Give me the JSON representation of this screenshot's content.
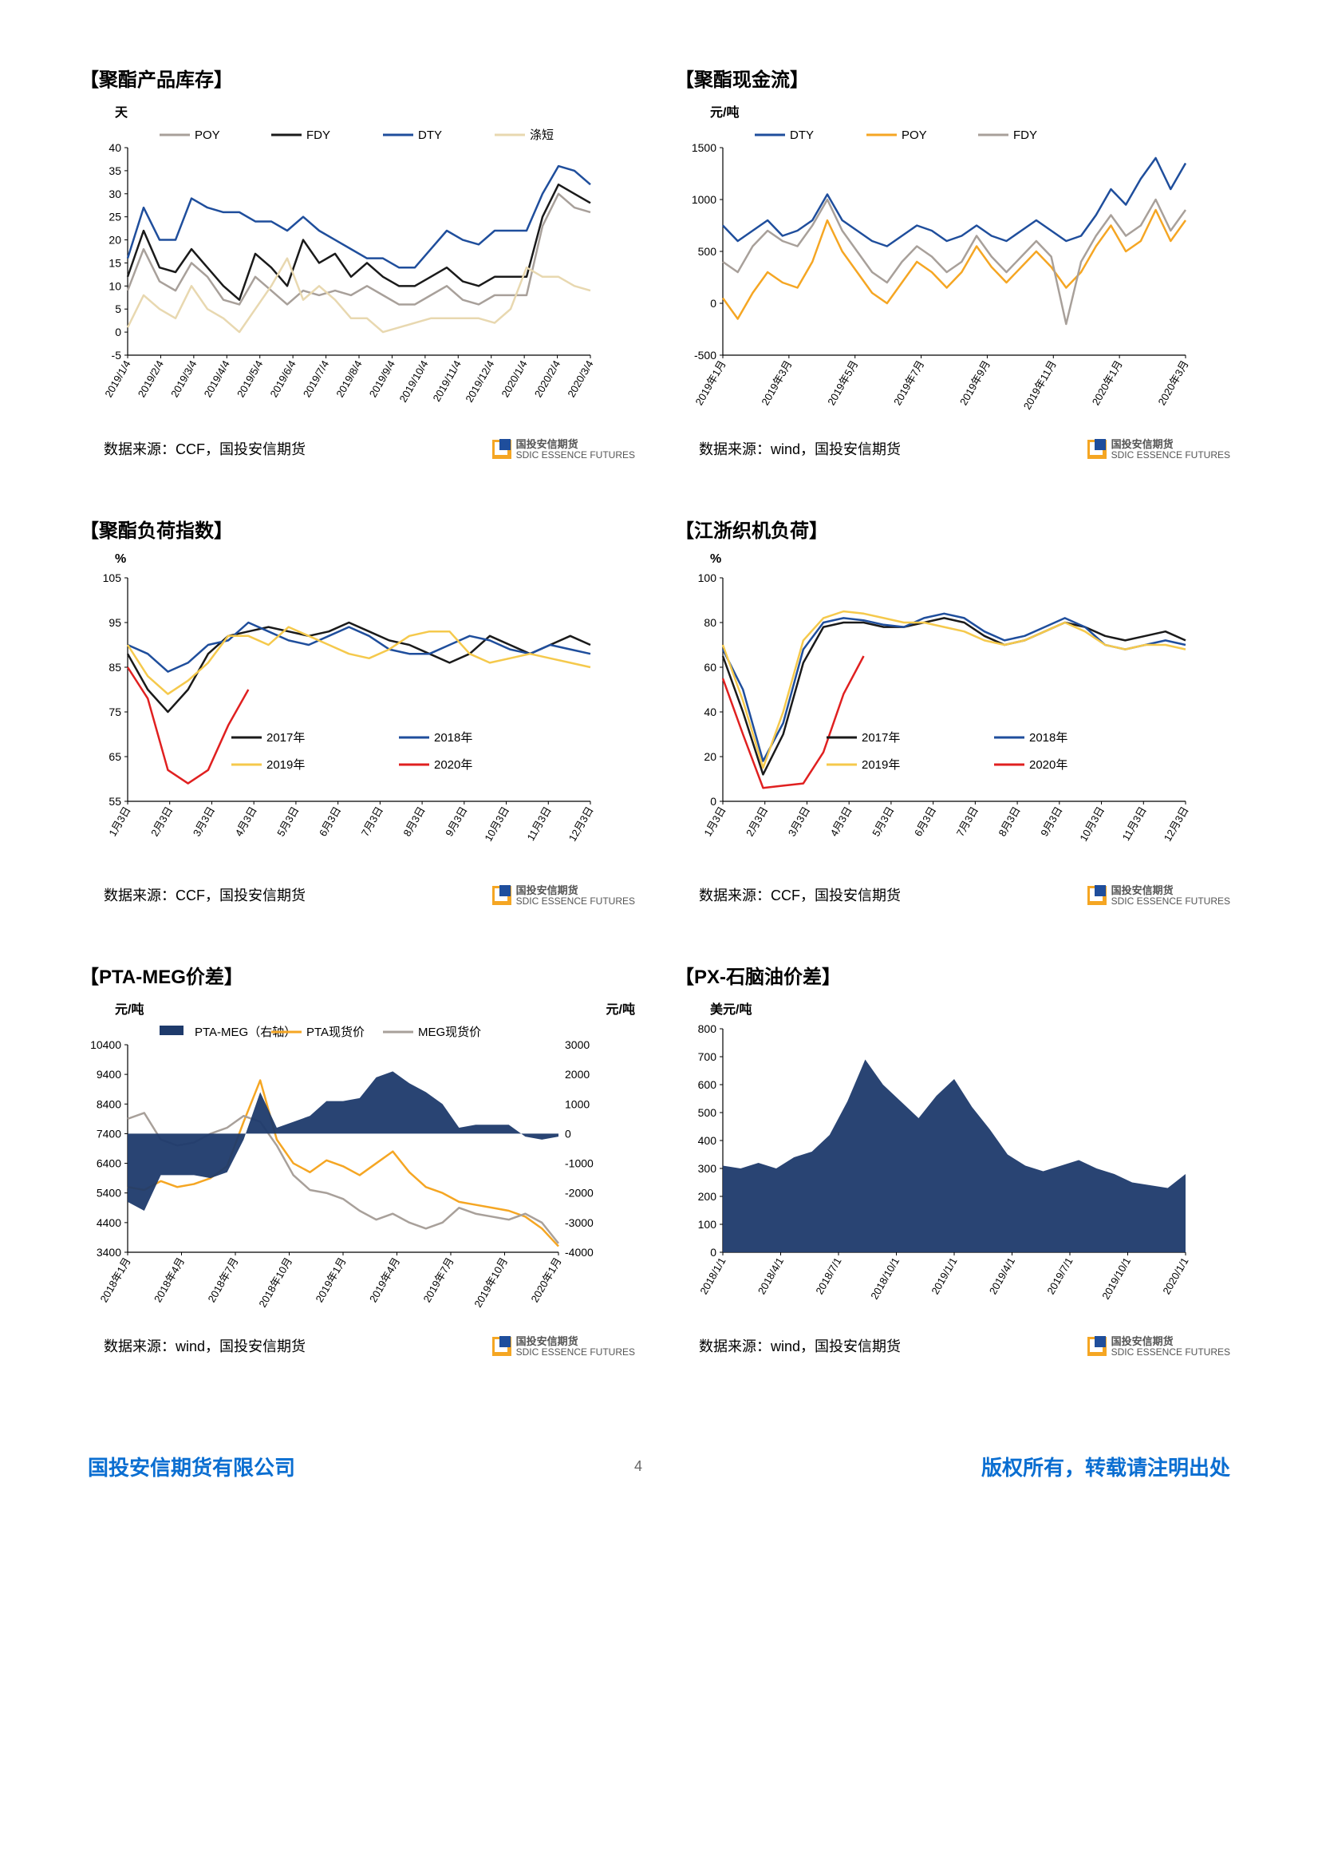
{
  "footer": {
    "left": "国投安信期货有限公司",
    "page": "4",
    "right": "版权所有，转载请注明出处"
  },
  "logo": {
    "cn": "国投安信期货",
    "en": "SDIC ESSENCE FUTURES"
  },
  "colors": {
    "grey": "#a8a09a",
    "black": "#1a1a1a",
    "blue": "#1f4e9c",
    "tan": "#e8d8b0",
    "orange": "#f5a623",
    "red": "#e02020",
    "yellow": "#f5c94c",
    "navy": "#1e3a6b"
  },
  "c1": {
    "title": "【聚酯产品库存】",
    "ylabel": "天",
    "source": "数据来源：CCF，国投安信期货",
    "ymin": -5,
    "ymax": 40,
    "ystep": 5,
    "xticks": [
      "2019/1/4",
      "2019/2/4",
      "2019/3/4",
      "2019/4/4",
      "2019/5/4",
      "2019/6/4",
      "2019/7/4",
      "2019/8/4",
      "2019/9/4",
      "2019/10/4",
      "2019/11/4",
      "2019/12/4",
      "2020/1/4",
      "2020/2/4",
      "2020/3/4"
    ],
    "legend": [
      {
        "l": "POY",
        "c": "grey"
      },
      {
        "l": "FDY",
        "c": "black"
      },
      {
        "l": "DTY",
        "c": "blue"
      },
      {
        "l": "涤短",
        "c": "tan"
      }
    ],
    "series": {
      "POY": [
        9,
        18,
        11,
        9,
        15,
        12,
        7,
        6,
        12,
        9,
        6,
        9,
        8,
        9,
        8,
        10,
        8,
        6,
        6,
        8,
        10,
        7,
        6,
        8,
        8,
        8,
        23,
        30,
        27,
        26
      ],
      "FDY": [
        12,
        22,
        14,
        13,
        18,
        14,
        10,
        7,
        17,
        14,
        10,
        20,
        15,
        17,
        12,
        15,
        12,
        10,
        10,
        12,
        14,
        11,
        10,
        12,
        12,
        12,
        25,
        32,
        30,
        28
      ],
      "DTY": [
        16,
        27,
        20,
        20,
        29,
        27,
        26,
        26,
        24,
        24,
        22,
        25,
        22,
        20,
        18,
        16,
        16,
        14,
        14,
        18,
        22,
        20,
        19,
        22,
        22,
        22,
        30,
        36,
        35,
        32
      ],
      "SHORT": [
        1,
        8,
        5,
        3,
        10,
        5,
        3,
        0,
        5,
        10,
        16,
        7,
        10,
        7,
        3,
        3,
        0,
        1,
        2,
        3,
        3,
        3,
        3,
        2,
        5,
        14,
        12,
        12,
        10,
        9
      ]
    }
  },
  "c2": {
    "title": "【聚酯现金流】",
    "ylabel": "元/吨",
    "source": "数据来源：wind，国投安信期货",
    "ymin": -500,
    "ymax": 1500,
    "ystep": 500,
    "xticks": [
      "2019年1月",
      "2019年3月",
      "2019年5月",
      "2019年7月",
      "2019年9月",
      "2019年11月",
      "2020年1月",
      "2020年3月"
    ],
    "legend": [
      {
        "l": "DTY",
        "c": "blue"
      },
      {
        "l": "POY",
        "c": "orange"
      },
      {
        "l": "FDY",
        "c": "grey"
      }
    ],
    "series": {
      "DTY": [
        750,
        600,
        700,
        800,
        650,
        700,
        800,
        1050,
        800,
        700,
        600,
        550,
        650,
        750,
        700,
        600,
        650,
        750,
        650,
        600,
        700,
        800,
        700,
        600,
        650,
        850,
        1100,
        950,
        1200,
        1400,
        1100,
        1350
      ],
      "POY": [
        50,
        -150,
        100,
        300,
        200,
        150,
        400,
        800,
        500,
        300,
        100,
        0,
        200,
        400,
        300,
        150,
        300,
        550,
        350,
        200,
        350,
        500,
        350,
        150,
        300,
        550,
        750,
        500,
        600,
        900,
        600,
        800
      ],
      "FDY": [
        400,
        300,
        550,
        700,
        600,
        550,
        750,
        1000,
        700,
        500,
        300,
        200,
        400,
        550,
        450,
        300,
        400,
        650,
        450,
        300,
        450,
        600,
        450,
        -200,
        400,
        650,
        850,
        650,
        750,
        1000,
        700,
        900
      ]
    }
  },
  "c3": {
    "title": "【聚酯负荷指数】",
    "ylabel": "%",
    "source": "数据来源：CCF，国投安信期货",
    "ymin": 55,
    "ymax": 105,
    "ystep": 10,
    "xticks": [
      "1月3日",
      "2月3日",
      "3月3日",
      "4月3日",
      "5月3日",
      "6月3日",
      "7月3日",
      "8月3日",
      "9月3日",
      "10月3日",
      "11月3日",
      "12月3日"
    ],
    "legend": [
      {
        "l": "2017年",
        "c": "black"
      },
      {
        "l": "2018年",
        "c": "blue"
      },
      {
        "l": "2019年",
        "c": "yellow"
      },
      {
        "l": "2020年",
        "c": "red"
      }
    ],
    "series": {
      "2017": [
        88,
        80,
        75,
        80,
        88,
        92,
        93,
        94,
        93,
        92,
        93,
        95,
        93,
        91,
        90,
        88,
        86,
        88,
        92,
        90,
        88,
        90,
        92,
        90
      ],
      "2018": [
        90,
        88,
        84,
        86,
        90,
        91,
        95,
        93,
        91,
        90,
        92,
        94,
        92,
        89,
        88,
        88,
        90,
        92,
        91,
        89,
        88,
        90,
        89,
        88
      ],
      "2019": [
        90,
        83,
        79,
        82,
        86,
        92,
        92,
        90,
        94,
        92,
        90,
        88,
        87,
        89,
        92,
        93,
        93,
        88,
        86,
        87,
        88,
        87,
        86,
        85
      ],
      "2020": [
        85,
        78,
        62,
        59,
        62,
        72,
        80
      ]
    }
  },
  "c4": {
    "title": "【江浙织机负荷】",
    "ylabel": "%",
    "source": "数据来源：CCF，国投安信期货",
    "ymin": 0,
    "ymax": 100,
    "ystep": 20,
    "xticks": [
      "1月3日",
      "2月3日",
      "3月3日",
      "4月3日",
      "5月3日",
      "6月3日",
      "7月3日",
      "8月3日",
      "9月3日",
      "10月3日",
      "11月3日",
      "12月3日"
    ],
    "legend": [
      {
        "l": "2017年",
        "c": "black"
      },
      {
        "l": "2018年",
        "c": "blue"
      },
      {
        "l": "2019年",
        "c": "yellow"
      },
      {
        "l": "2020年",
        "c": "red"
      }
    ],
    "series": {
      "2017": [
        65,
        40,
        12,
        30,
        62,
        78,
        80,
        80,
        78,
        78,
        80,
        82,
        80,
        74,
        70,
        72,
        76,
        80,
        78,
        74,
        72,
        74,
        76,
        72
      ],
      "2018": [
        68,
        50,
        18,
        35,
        68,
        80,
        82,
        81,
        79,
        78,
        82,
        84,
        82,
        76,
        72,
        74,
        78,
        82,
        78,
        70,
        68,
        70,
        72,
        70
      ],
      "2019": [
        70,
        45,
        15,
        40,
        72,
        82,
        85,
        84,
        82,
        80,
        80,
        78,
        76,
        72,
        70,
        72,
        76,
        80,
        76,
        70,
        68,
        70,
        70,
        68
      ],
      "2020": [
        55,
        30,
        6,
        7,
        8,
        22,
        48,
        65
      ]
    }
  },
  "c5": {
    "title": "【PTA-MEG价差】",
    "ylabel": "元/吨",
    "ylabel2": "元/吨",
    "source": "数据来源：wind，国投安信期货",
    "ymin": 3400,
    "ymax": 10400,
    "ystep": 1000,
    "y2min": -4000,
    "y2max": 3000,
    "y2step": 1000,
    "xticks": [
      "2018年1月",
      "2018年4月",
      "2018年7月",
      "2018年10月",
      "2019年1月",
      "2019年4月",
      "2019年7月",
      "2019年10月",
      "2020年1月"
    ],
    "legend": [
      {
        "l": "PTA-MEG（右轴）",
        "c": "navy",
        "t": "area"
      },
      {
        "l": "PTA现货价",
        "c": "orange"
      },
      {
        "l": "MEG现货价",
        "c": "grey"
      }
    ],
    "series": {
      "PTA": [
        5600,
        5500,
        5800,
        5600,
        5700,
        5900,
        6300,
        7800,
        9200,
        7200,
        6400,
        6100,
        6500,
        6300,
        6000,
        6400,
        6800,
        6100,
        5600,
        5400,
        5100,
        5000,
        4900,
        4800,
        4600,
        4200,
        3600
      ],
      "MEG": [
        7900,
        8100,
        7200,
        7000,
        7100,
        7400,
        7600,
        8000,
        7800,
        7000,
        6000,
        5500,
        5400,
        5200,
        4800,
        4500,
        4700,
        4400,
        4200,
        4400,
        4900,
        4700,
        4600,
        4500,
        4700,
        4400,
        3700
      ],
      "DIFF": [
        -2300,
        -2600,
        -1400,
        -1400,
        -1400,
        -1500,
        -1300,
        -200,
        1400,
        200,
        400,
        600,
        1100,
        1100,
        1200,
        1900,
        2100,
        1700,
        1400,
        1000,
        200,
        300,
        300,
        300,
        -100,
        -200,
        -100
      ]
    }
  },
  "c6": {
    "title": "【PX-石脑油价差】",
    "ylabel": "美元/吨",
    "source": "数据来源：wind，国投安信期货",
    "ymin": 0,
    "ymax": 800,
    "ystep": 100,
    "xticks": [
      "2018/1/1",
      "2018/4/1",
      "2018/7/1",
      "2018/10/1",
      "2019/1/1",
      "2019/4/1",
      "2019/7/1",
      "2019/10/1",
      "2020/1/1"
    ],
    "series": {
      "PX": [
        310,
        300,
        320,
        300,
        340,
        360,
        420,
        540,
        690,
        600,
        540,
        480,
        560,
        620,
        520,
        440,
        350,
        310,
        290,
        310,
        330,
        300,
        280,
        250,
        240,
        230,
        280
      ]
    }
  }
}
